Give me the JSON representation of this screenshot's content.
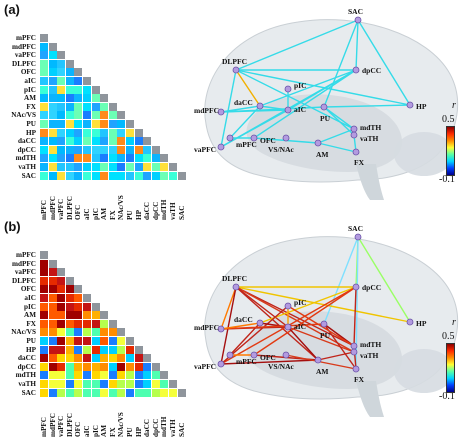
{
  "panels": [
    {
      "id": "a",
      "letter": "(a)"
    },
    {
      "id": "b",
      "letter": "(b)"
    }
  ],
  "matrix_labels": [
    "mPFC",
    "mdPFC",
    "vaPFC",
    "DLPFC",
    "OFC",
    "aIC",
    "pIC",
    "AM",
    "FX",
    "NAc/VS",
    "PU",
    "HP",
    "daCC",
    "dpCC",
    "mdTH",
    "vaTH",
    "SAC"
  ],
  "brain_labels": {
    "SAC": "SAC",
    "DLPFC": "DLPFC",
    "dpCC": "dpCC",
    "pIC": "pIC",
    "daCC": "daCC",
    "aIC": "aIC",
    "mdPFC": "mdPFC",
    "PU": "PU",
    "HP": "HP",
    "mdTH": "mdTH",
    "vaTH": "vaTH",
    "vaPFC": "vaPFC",
    "mPFC": "mPFC",
    "OFC": "OFC",
    "VSNAc": "VS/NAc",
    "AM": "AM",
    "FX": "FX"
  },
  "colorbar": {
    "var": "r",
    "max": "0.5",
    "min": "-0.1"
  },
  "colors": {
    "diagonal": "#8f959c",
    "accent_line_a": "#33d6e8"
  }
}
